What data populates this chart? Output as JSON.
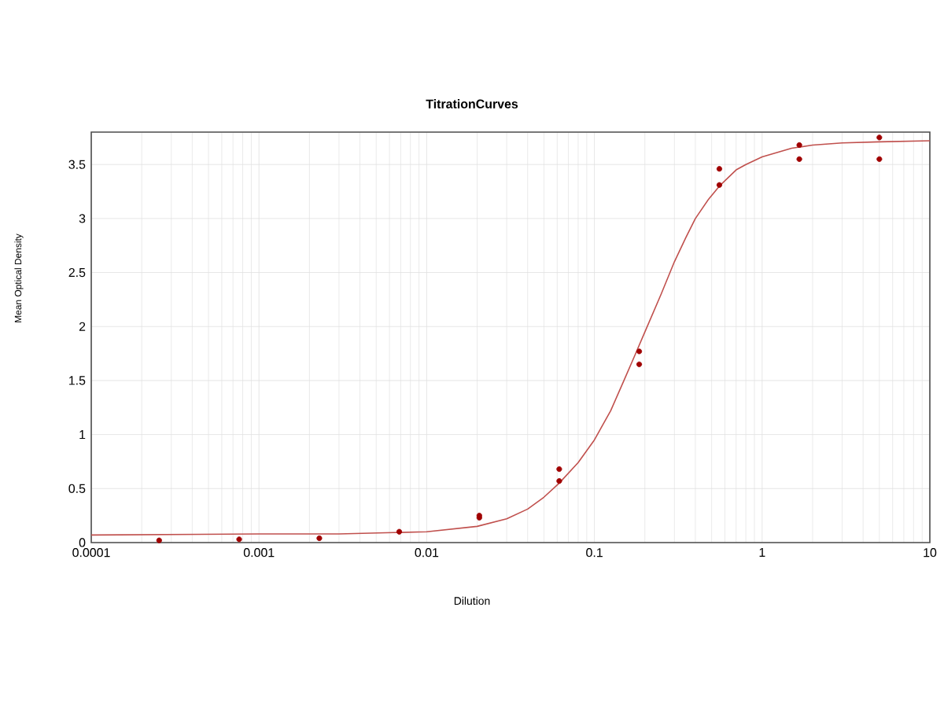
{
  "chart_data": {
    "type": "scatter",
    "title": "TitrationCurves",
    "xlabel": "Dilution",
    "ylabel": "Mean Optical Density",
    "log": "x",
    "grid": true,
    "xlim": [
      0.0001,
      10
    ],
    "xticks": [
      0.0001,
      0.001,
      0.01,
      0.1,
      1,
      10
    ],
    "ylim": [
      0,
      3.8
    ],
    "yticks": [
      0,
      0.5,
      1,
      1.5,
      2,
      2.5,
      3,
      3.5
    ],
    "series": [
      {
        "marker": "circle",
        "color": "#a00000",
        "x": [
          0.000254,
          0.000762,
          0.00229,
          0.00686,
          0.0206,
          0.0206,
          0.0617,
          0.0617,
          0.185,
          0.185,
          0.556,
          0.556,
          1.667,
          1.667,
          5,
          5
        ],
        "values": [
          0.02,
          0.03,
          0.04,
          0.1,
          0.25,
          0.23,
          0.68,
          0.57,
          1.77,
          1.65,
          3.46,
          3.31,
          3.68,
          3.55,
          3.75,
          3.55
        ]
      },
      {
        "type": "line",
        "marker": "none",
        "color": "#c0504d",
        "x": [
          0.0001,
          0.001,
          0.003,
          0.01,
          0.02,
          0.03,
          0.04,
          0.05,
          0.0617,
          0.08,
          0.1,
          0.125,
          0.15,
          0.175,
          0.2,
          0.25,
          0.3,
          0.35,
          0.4,
          0.48,
          0.556,
          0.7,
          0.8,
          1,
          1.5,
          2,
          3,
          5,
          10
        ],
        "values": [
          0.07,
          0.08,
          0.08,
          0.1,
          0.15,
          0.22,
          0.31,
          0.42,
          0.55,
          0.74,
          0.95,
          1.22,
          1.5,
          1.74,
          1.95,
          2.3,
          2.6,
          2.82,
          3.0,
          3.18,
          3.3,
          3.45,
          3.5,
          3.57,
          3.65,
          3.68,
          3.7,
          3.71,
          3.72
        ]
      }
    ]
  }
}
